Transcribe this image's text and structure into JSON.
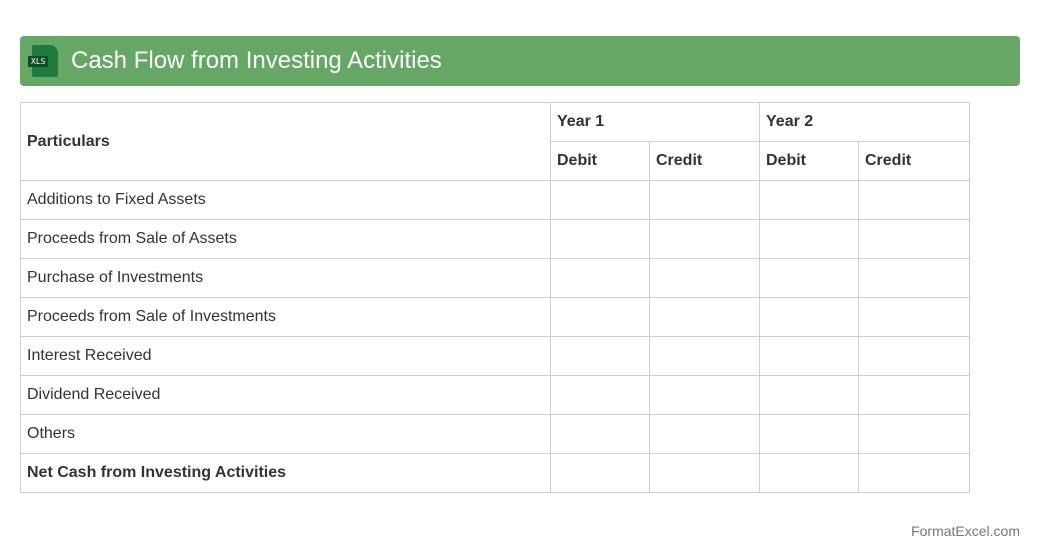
{
  "header": {
    "title": "Cash Flow from Investing Activities",
    "icon": "xls-file-icon",
    "icon_label": "XLS",
    "color": "#66a766"
  },
  "table": {
    "particulars": "Particulars",
    "years": [
      "Year 1",
      "Year 2"
    ],
    "subcols": [
      "Debit",
      "Credit",
      "Debit",
      "Credit"
    ],
    "rows": [
      "Additions to Fixed Assets",
      "Proceeds from Sale of Assets",
      "Purchase of Investments",
      "Proceeds from Sale of Investments",
      "Interest Received",
      "Dividend Received",
      "Others"
    ],
    "total": "Net Cash from Investing Activities"
  },
  "footer": "FormatExcel.com"
}
